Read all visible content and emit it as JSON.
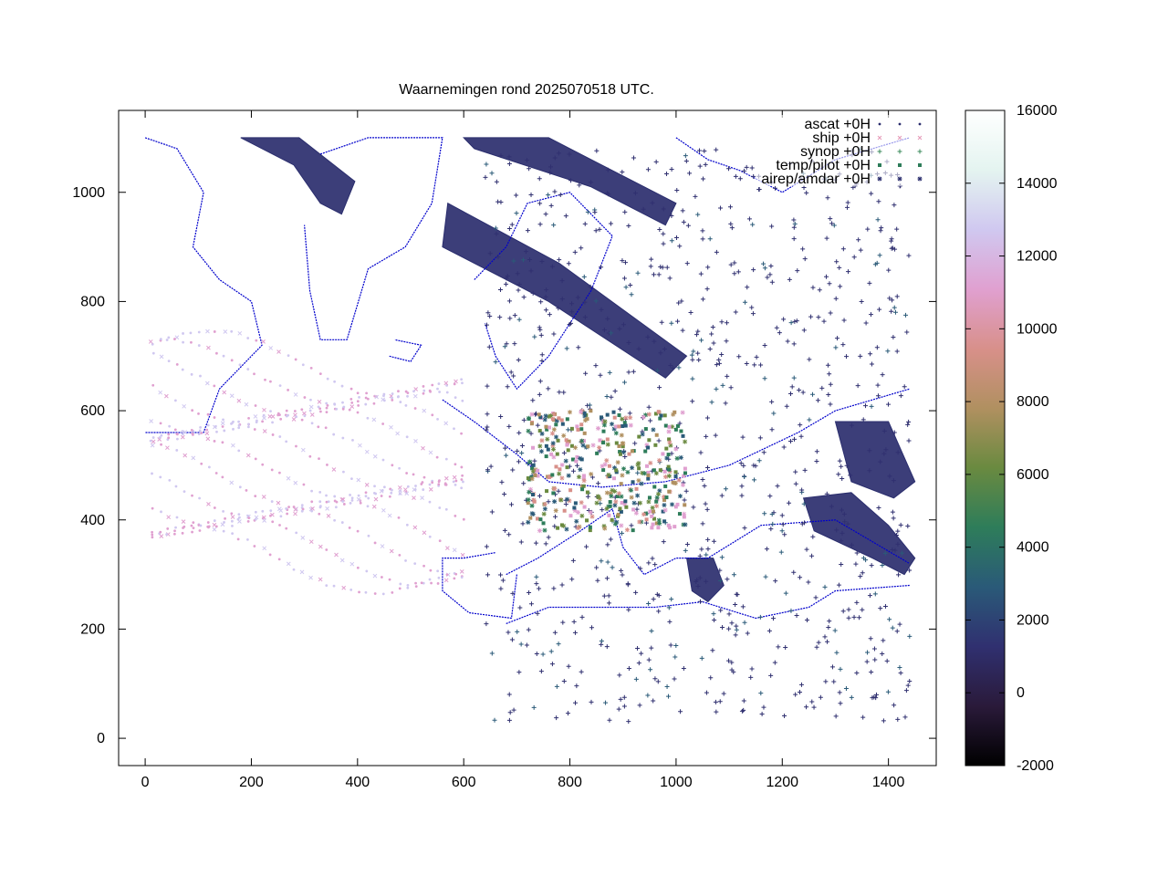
{
  "chart_data": {
    "type": "scatter",
    "title": "Waarnemingen rond 2025070518 UTC.",
    "xlabel": "",
    "ylabel": "",
    "xlim": [
      -50,
      1490
    ],
    "ylim": [
      -50,
      1150
    ],
    "x_ticks": [
      0,
      200,
      400,
      600,
      800,
      1000,
      1200,
      1400
    ],
    "y_ticks": [
      0,
      200,
      400,
      600,
      800,
      1000
    ],
    "x_tick_labels": [
      "0",
      "200",
      "400",
      "600",
      "800",
      "1000",
      "1200",
      "1400"
    ],
    "y_tick_labels": [
      "0",
      "200",
      "400",
      "600",
      "800",
      "1000"
    ],
    "grid": false,
    "legend_position": "top-right",
    "series": [
      {
        "name": "ascat +0H",
        "marker": "dot",
        "color": "#2b2e6e"
      },
      {
        "name": "ship +0H",
        "marker": "x",
        "color": "#e69ab8"
      },
      {
        "name": "synop +0H",
        "marker": "plus",
        "color": "#3a8a5a"
      },
      {
        "name": "temp/pilot +0H",
        "marker": "square",
        "color": "#2e7d5a"
      },
      {
        "name": "airep/amdar +0H",
        "marker": "star",
        "color": "#2b2e6e"
      }
    ],
    "colorbar": {
      "range": [
        -2000,
        16000
      ],
      "tick_values": [
        -2000,
        0,
        2000,
        4000,
        6000,
        8000,
        10000,
        12000,
        14000,
        16000
      ],
      "tick_labels": [
        "-2000",
        "0",
        "2000",
        "4000",
        "6000",
        "8000",
        "10000",
        "12000",
        "14000",
        "16000"
      ],
      "palette": [
        "#000000",
        "#2a1a3a",
        "#303070",
        "#2a5a78",
        "#2e7d5a",
        "#6a8a40",
        "#b09060",
        "#d8908a",
        "#e0a0d0",
        "#d0c8f0",
        "#e4f4f0",
        "#ffffff"
      ]
    },
    "coastline_color": "#0000cc",
    "ascat_swaths": [
      {
        "polygon": [
          [
            180,
            1100
          ],
          [
            290,
            1100
          ],
          [
            395,
            1020
          ],
          [
            370,
            960
          ],
          [
            330,
            980
          ],
          [
            280,
            1050
          ]
        ]
      },
      {
        "polygon": [
          [
            600,
            1100
          ],
          [
            760,
            1100
          ],
          [
            1000,
            980
          ],
          [
            980,
            940
          ],
          [
            840,
            1010
          ],
          [
            620,
            1080
          ]
        ]
      },
      {
        "polygon": [
          [
            570,
            980
          ],
          [
            780,
            870
          ],
          [
            1020,
            700
          ],
          [
            980,
            660
          ],
          [
            760,
            800
          ],
          [
            560,
            900
          ]
        ]
      },
      {
        "polygon": [
          [
            1300,
            580
          ],
          [
            1400,
            580
          ],
          [
            1450,
            470
          ],
          [
            1410,
            440
          ],
          [
            1330,
            470
          ]
        ]
      },
      {
        "polygon": [
          [
            1240,
            440
          ],
          [
            1330,
            450
          ],
          [
            1400,
            390
          ],
          [
            1450,
            330
          ],
          [
            1430,
            300
          ],
          [
            1370,
            330
          ],
          [
            1260,
            380
          ]
        ]
      },
      {
        "polygon": [
          [
            1020,
            330
          ],
          [
            1070,
            330
          ],
          [
            1090,
            280
          ],
          [
            1060,
            250
          ],
          [
            1030,
            270
          ]
        ]
      }
    ]
  }
}
